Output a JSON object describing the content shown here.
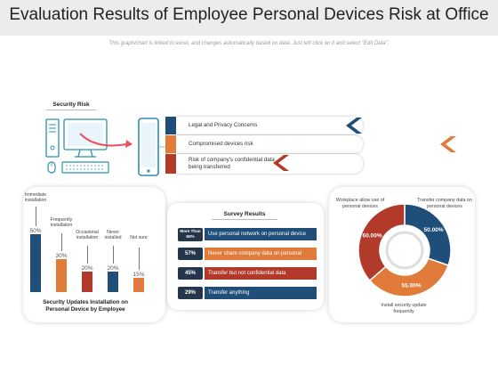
{
  "header": {
    "title": "Evaluation Results of Employee Personal Devices Risk at Office",
    "subtitle": "This graph/chart is linked to excel, and changes automatically based on data. Just left click on it and select \"Edit Data\"."
  },
  "security": {
    "label": "Security Risk",
    "items": [
      {
        "text": "Legal and Privacy Concerns",
        "color": "#1f4e79"
      },
      {
        "text": "Compromised devices risk",
        "color": "#e07b39"
      },
      {
        "text": "Risk of company's confidential data being transferred",
        "color": "#b23a2a"
      }
    ]
  },
  "chart_data": [
    {
      "type": "bar",
      "categories": [
        "Immediate installation",
        "Frequently installation",
        "Occasional installation",
        "Never installed",
        "Not sure"
      ],
      "values": [
        50,
        30,
        20,
        20,
        15
      ],
      "value_labels": [
        "50%",
        "30%",
        "20%",
        "20%",
        "15%"
      ],
      "colors": [
        "#1f4e79",
        "#e07b39",
        "#b23a2a",
        "#1f4e79",
        "#e07b39"
      ],
      "ylim": [
        0,
        50
      ],
      "title": "Security Updates Installation on Personal Device by Employee"
    },
    {
      "type": "pie",
      "categories": [
        "Workplace allow use of personal devices",
        "Transfer company data on personal devices",
        "Install security update frequently"
      ],
      "values": [
        60,
        50,
        55
      ],
      "value_labels": [
        "60.00%",
        "50.00%",
        "55.00%"
      ],
      "colors": [
        "#b23a2a",
        "#1f4e79",
        "#e07b39"
      ]
    }
  ],
  "survey": {
    "title": "Survey Results",
    "rows": [
      {
        "badge": "More Than 60%",
        "text": "Use personal network on personal device",
        "color": "#1f4e79"
      },
      {
        "badge": "57%",
        "text": "Never share company data on personal device",
        "color": "#e07b39"
      },
      {
        "badge": "45%",
        "text": "Transfer but not confidential data",
        "color": "#b23a2a"
      },
      {
        "badge": "29%",
        "text": "Transfer anything",
        "color": "#1f4e79"
      }
    ]
  },
  "icons": [
    "computer-icon",
    "tablet-icon",
    "arrow-icon",
    "chevron-left-icon"
  ]
}
